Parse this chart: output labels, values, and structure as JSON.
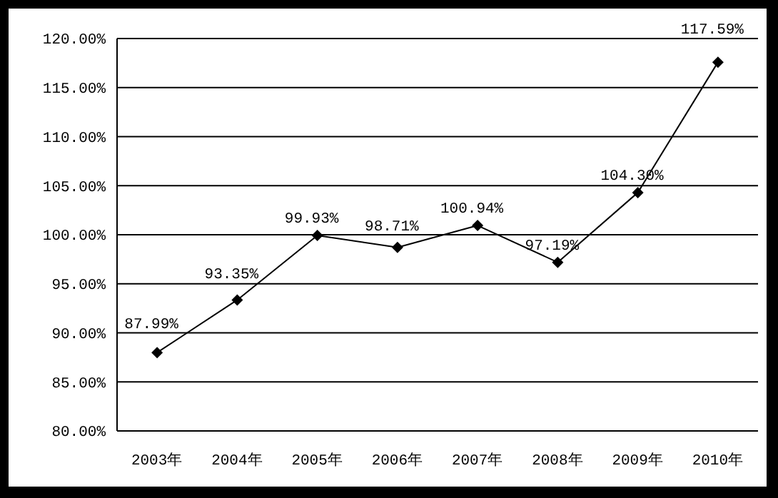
{
  "chart_data": {
    "type": "line",
    "categories": [
      "2003年",
      "2004年",
      "2005年",
      "2006年",
      "2007年",
      "2008年",
      "2009年",
      "2010年"
    ],
    "series": [
      {
        "color": "#000000",
        "values": [
          87.99,
          93.35,
          99.93,
          98.71,
          100.94,
          97.19,
          104.3,
          117.59
        ],
        "value_labels": [
          "87.99%",
          "93.35%",
          "99.93%",
          "98.71%",
          "100.94%",
          "97.19%",
          "104.30%",
          "117.59%"
        ]
      }
    ],
    "ylim": [
      80,
      120
    ],
    "yticks": [
      {
        "value": 80,
        "label": "80.00%"
      },
      {
        "value": 85,
        "label": "85.00%"
      },
      {
        "value": 90,
        "label": "90.00%"
      },
      {
        "value": 95,
        "label": "95.00%"
      },
      {
        "value": 100,
        "label": "100.00%"
      },
      {
        "value": 105,
        "label": "105.00%"
      },
      {
        "value": 110,
        "label": "110.00%"
      },
      {
        "value": 115,
        "label": "115.00%"
      },
      {
        "value": 120,
        "label": "120.00%"
      }
    ],
    "grid": "y",
    "legend": false,
    "marker": "diamond",
    "line_style": "solid"
  }
}
